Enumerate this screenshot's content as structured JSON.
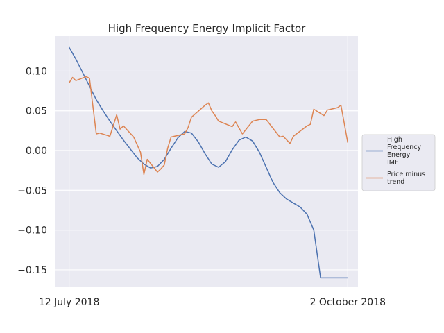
{
  "chart_data": {
    "type": "line",
    "title": "High Frequency Energy Implicit Factor",
    "xlabel": "",
    "ylabel": "",
    "grid": true,
    "legend_position": "right",
    "x_tick_labels": [
      "12 July 2018",
      "2 October 2018"
    ],
    "y_ticks": [
      0.1,
      0.05,
      0.0,
      -0.05,
      -0.1,
      -0.15
    ],
    "y_tick_labels": [
      "0.10",
      "0.05",
      "0.00",
      "−0.05",
      "−0.10",
      "−0.15"
    ],
    "xlim": [
      -4,
      85
    ],
    "ylim": [
      -0.171,
      0.144
    ],
    "x_ticks": [
      0,
      82
    ],
    "series": [
      {
        "name": "High Frequency Energy IMF",
        "legend_lines": [
          "High",
          "Frequency",
          "Energy",
          "IMF"
        ],
        "color": "#4c72b0",
        "x": [
          0,
          2,
          4,
          6,
          8,
          10,
          12,
          14,
          16,
          18,
          20,
          22,
          24,
          26,
          28,
          30,
          32,
          34,
          36,
          38,
          40,
          42,
          44,
          46,
          48,
          50,
          52,
          54,
          56,
          58,
          60,
          62,
          64,
          66,
          68,
          70,
          72,
          74,
          76,
          78,
          80,
          82
        ],
        "values": [
          0.13,
          0.115,
          0.098,
          0.081,
          0.064,
          0.05,
          0.037,
          0.025,
          0.013,
          0.002,
          -0.009,
          -0.017,
          -0.022,
          -0.02,
          -0.011,
          0.003,
          0.016,
          0.024,
          0.022,
          0.011,
          -0.004,
          -0.017,
          -0.021,
          -0.014,
          0.001,
          0.013,
          0.017,
          0.012,
          -0.002,
          -0.021,
          -0.04,
          -0.053,
          -0.061,
          -0.066,
          -0.071,
          -0.08,
          -0.1,
          -0.16,
          -0.16,
          -0.16,
          -0.16,
          -0.16
        ]
      },
      {
        "name": "Price minus trend",
        "legend_lines": [
          "Price minus",
          "trend"
        ],
        "color": "#dd8452",
        "x": [
          0,
          1,
          2,
          5,
          6,
          8,
          9,
          12,
          14,
          15,
          16,
          19,
          21,
          22,
          23,
          26,
          27,
          28,
          29,
          30,
          34,
          35,
          36,
          40,
          41,
          42,
          43,
          44,
          48,
          49,
          51,
          54,
          55,
          56,
          57,
          58,
          62,
          63,
          65,
          66,
          70,
          71,
          72,
          75,
          76,
          79,
          80,
          82
        ],
        "values": [
          0.085,
          0.092,
          0.088,
          0.093,
          0.091,
          0.021,
          0.022,
          0.018,
          0.045,
          0.027,
          0.031,
          0.017,
          -0.002,
          -0.03,
          -0.011,
          -0.027,
          -0.023,
          -0.018,
          0.003,
          0.017,
          0.021,
          0.029,
          0.042,
          0.057,
          0.06,
          0.05,
          0.044,
          0.037,
          0.03,
          0.036,
          0.021,
          0.037,
          0.038,
          0.039,
          0.039,
          0.039,
          0.017,
          0.018,
          0.009,
          0.018,
          0.031,
          0.033,
          0.052,
          0.044,
          0.051,
          0.054,
          0.057,
          0.01
        ]
      }
    ]
  }
}
